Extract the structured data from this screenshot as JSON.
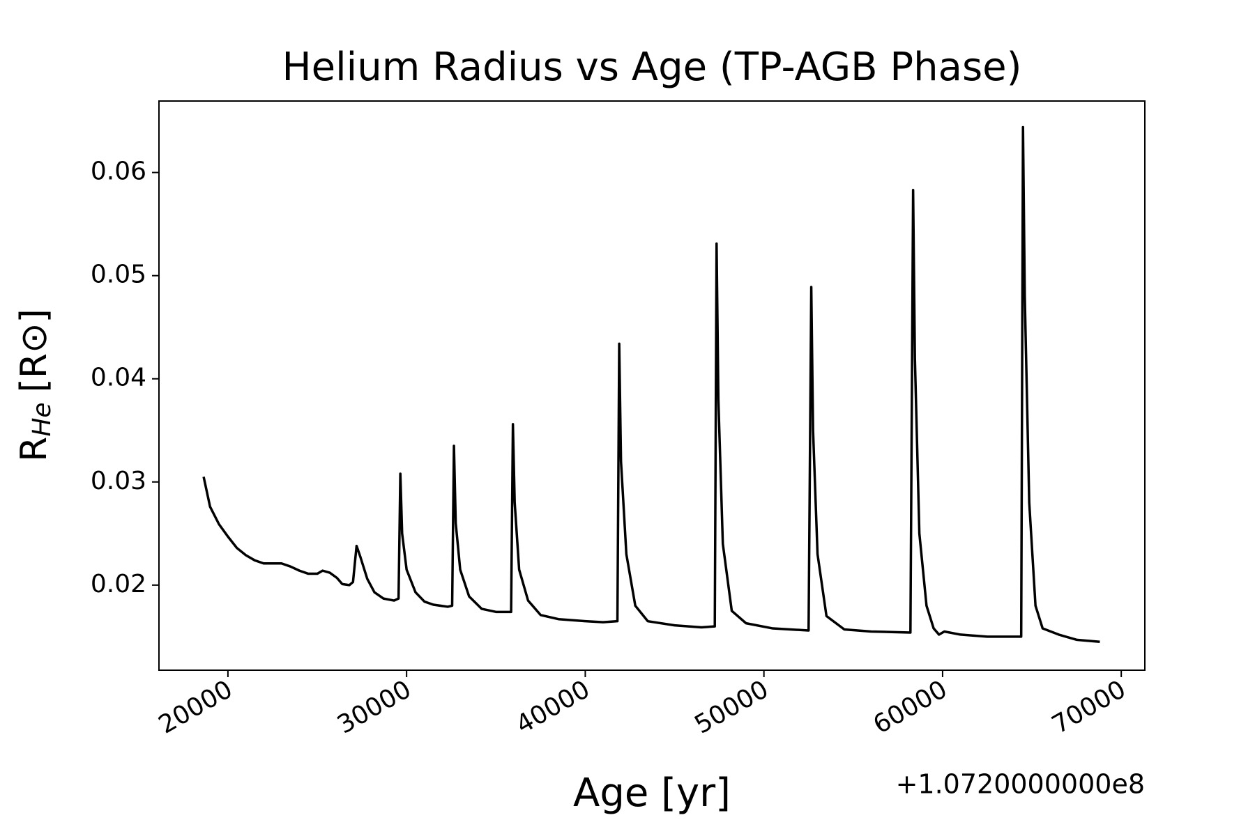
{
  "chart_data": {
    "type": "line",
    "title": "Helium Radius vs Age (TP-AGB Phase)",
    "x_label": "Age [yr]",
    "y_label": "R",
    "y_label_sub": "He",
    "y_label_unit": "[R⊙]",
    "x_offset_label": "+1.0720000000e8",
    "xlim": [
      16140,
      71320
    ],
    "ylim": [
      0.01175,
      0.06693
    ],
    "xticks": [
      20000,
      30000,
      40000,
      50000,
      60000,
      70000
    ],
    "yticks": [
      0.02,
      0.03,
      0.04,
      0.05,
      0.06
    ],
    "grid": false,
    "x": [
      18640,
      19000,
      19500,
      20000,
      20500,
      21000,
      21500,
      22000,
      22500,
      23000,
      23500,
      24000,
      24500,
      25000,
      25300,
      25700,
      26100,
      26400,
      26800,
      27000,
      27200,
      27400,
      27800,
      28200,
      28700,
      29300,
      29550,
      29650,
      29750,
      30000,
      30500,
      31000,
      31500,
      32300,
      32550,
      32650,
      32750,
      33000,
      33500,
      34200,
      35000,
      35850,
      35950,
      36050,
      36300,
      36800,
      37500,
      38500,
      40000,
      41000,
      41800,
      41900,
      42000,
      42300,
      42800,
      43500,
      45000,
      46500,
      47250,
      47350,
      47450,
      47700,
      48200,
      49000,
      50500,
      52500,
      52650,
      52750,
      53000,
      53500,
      54500,
      56000,
      58200,
      58350,
      58450,
      58700,
      59100,
      59500,
      59800,
      60100,
      61000,
      62500,
      64400,
      64500,
      64600,
      64850,
      65200,
      65600,
      66500,
      67500,
      68800
    ],
    "series": [
      {
        "color": "#000000",
        "values": [
          0.0305,
          0.0276,
          0.0259,
          0.0247,
          0.0236,
          0.0229,
          0.0224,
          0.0221,
          0.0221,
          0.0221,
          0.0218,
          0.0214,
          0.0211,
          0.0211,
          0.0214,
          0.0212,
          0.0207,
          0.0201,
          0.02,
          0.0203,
          0.0238,
          0.0228,
          0.0206,
          0.0193,
          0.0187,
          0.0185,
          0.0187,
          0.0308,
          0.025,
          0.0215,
          0.0193,
          0.0184,
          0.0181,
          0.0179,
          0.018,
          0.0335,
          0.026,
          0.0215,
          0.0189,
          0.0177,
          0.0174,
          0.0174,
          0.0356,
          0.028,
          0.0215,
          0.0185,
          0.0171,
          0.0167,
          0.0165,
          0.0164,
          0.0165,
          0.0434,
          0.032,
          0.023,
          0.018,
          0.0165,
          0.0161,
          0.0159,
          0.016,
          0.0531,
          0.038,
          0.024,
          0.0175,
          0.0163,
          0.0158,
          0.0156,
          0.0489,
          0.035,
          0.023,
          0.017,
          0.0157,
          0.0155,
          0.0154,
          0.0583,
          0.042,
          0.025,
          0.018,
          0.0158,
          0.0152,
          0.0155,
          0.0152,
          0.015,
          0.015,
          0.0644,
          0.048,
          0.028,
          0.018,
          0.0158,
          0.0152,
          0.0147,
          0.0145
        ]
      }
    ]
  }
}
